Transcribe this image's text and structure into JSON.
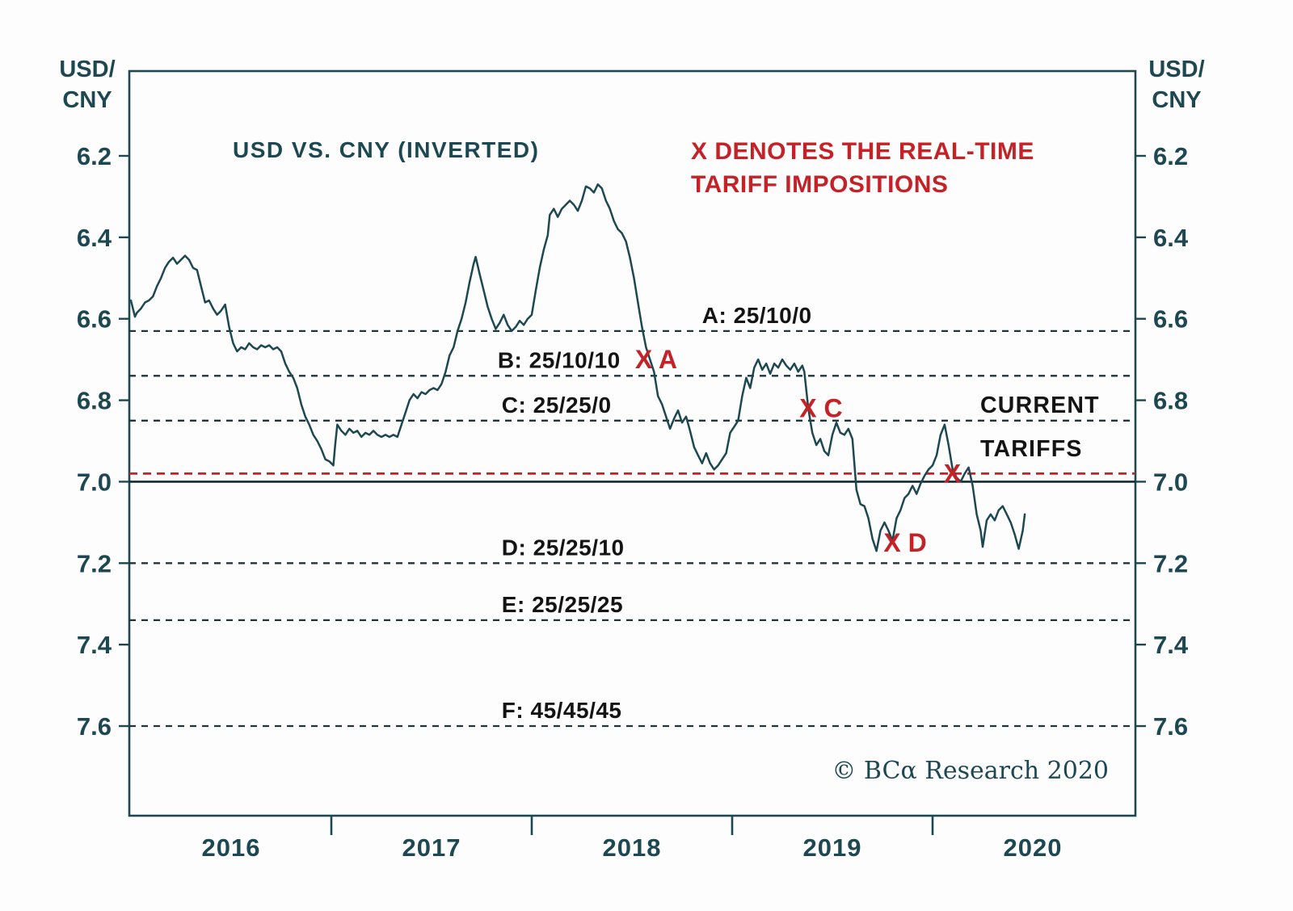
{
  "chart_data": {
    "type": "line",
    "title": "USD VS. CNY (INVERTED)",
    "y_axis_unit": [
      "USD/",
      "CNY"
    ],
    "annotation_red": [
      "X DENOTES THE REAL-TIME",
      "TARIFF IMPOSITIONS"
    ],
    "current_tariffs_label": [
      "CURRENT",
      "TARIFFS"
    ],
    "copyright": "© BCα Research 2020",
    "y_inverted": true,
    "x_year_labels": [
      "2016",
      "2017",
      "2018",
      "2019",
      "2020"
    ],
    "x_tick_years": [
      2017,
      2018,
      2019,
      2020
    ],
    "y_ticks": [
      6.2,
      6.4,
      6.6,
      6.8,
      7.0,
      7.2,
      7.4,
      7.6
    ],
    "x_range": [
      2016.0,
      2021.0
    ],
    "legend_position": "none",
    "grid": "off",
    "reference_lines": [
      {
        "id": "A",
        "label": "A: 25/10/0",
        "value": 6.63,
        "style": "dashed-dark",
        "label_year": 2018.85
      },
      {
        "id": "B",
        "label": "B: 25/10/10",
        "value": 6.74,
        "style": "dashed-dark",
        "label_year": 2017.83
      },
      {
        "id": "C",
        "label": "C: 25/25/0",
        "value": 6.85,
        "style": "dashed-dark",
        "label_year": 2017.85
      },
      {
        "id": "current-tariffs",
        "label": "",
        "value": 6.98,
        "style": "dashed-red"
      },
      {
        "id": "seven-level",
        "label": "",
        "value": 7.0,
        "style": "solid-dark"
      },
      {
        "id": "D",
        "label": "D: 25/25/10",
        "value": 7.2,
        "style": "dashed-dark",
        "label_year": 2017.85
      },
      {
        "id": "E",
        "label": "E: 25/25/25",
        "value": 7.34,
        "style": "dashed-dark",
        "label_year": 2017.85
      },
      {
        "id": "F",
        "label": "F: 45/45/45",
        "value": 7.6,
        "style": "dashed-dark",
        "label_year": 2017.85
      }
    ],
    "markers": [
      {
        "label": "X A",
        "year": 2018.56,
        "value": 6.7
      },
      {
        "label": "X C",
        "year": 2019.38,
        "value": 6.82
      },
      {
        "label": "X D",
        "year": 2019.8,
        "value": 7.15
      },
      {
        "label": "X",
        "year": 2020.1,
        "value": 6.98
      }
    ],
    "series": [
      {
        "name": "USD/CNY",
        "points": [
          [
            2016.0,
            6.555
          ],
          [
            2016.01,
            6.575
          ],
          [
            2016.02,
            6.595
          ],
          [
            2016.03,
            6.585
          ],
          [
            2016.05,
            6.575
          ],
          [
            2016.07,
            6.56
          ],
          [
            2016.09,
            6.555
          ],
          [
            2016.11,
            6.545
          ],
          [
            2016.13,
            6.52
          ],
          [
            2016.15,
            6.5
          ],
          [
            2016.17,
            6.475
          ],
          [
            2016.19,
            6.46
          ],
          [
            2016.21,
            6.45
          ],
          [
            2016.23,
            6.465
          ],
          [
            2016.25,
            6.455
          ],
          [
            2016.27,
            6.445
          ],
          [
            2016.29,
            6.455
          ],
          [
            2016.31,
            6.475
          ],
          [
            2016.33,
            6.48
          ],
          [
            2016.35,
            6.52
          ],
          [
            2016.37,
            6.56
          ],
          [
            2016.39,
            6.555
          ],
          [
            2016.41,
            6.575
          ],
          [
            2016.43,
            6.59
          ],
          [
            2016.45,
            6.58
          ],
          [
            2016.47,
            6.565
          ],
          [
            2016.49,
            6.62
          ],
          [
            2016.51,
            6.66
          ],
          [
            2016.53,
            6.68
          ],
          [
            2016.55,
            6.67
          ],
          [
            2016.57,
            6.675
          ],
          [
            2016.59,
            6.66
          ],
          [
            2016.61,
            6.67
          ],
          [
            2016.63,
            6.675
          ],
          [
            2016.65,
            6.665
          ],
          [
            2016.67,
            6.67
          ],
          [
            2016.69,
            6.665
          ],
          [
            2016.71,
            6.675
          ],
          [
            2016.73,
            6.67
          ],
          [
            2016.75,
            6.68
          ],
          [
            2016.77,
            6.71
          ],
          [
            2016.79,
            6.73
          ],
          [
            2016.81,
            6.745
          ],
          [
            2016.83,
            6.77
          ],
          [
            2016.85,
            6.81
          ],
          [
            2016.87,
            6.84
          ],
          [
            2016.89,
            6.86
          ],
          [
            2016.91,
            6.885
          ],
          [
            2016.93,
            6.9
          ],
          [
            2016.95,
            6.92
          ],
          [
            2016.97,
            6.945
          ],
          [
            2016.99,
            6.95
          ],
          [
            2017.01,
            6.96
          ],
          [
            2017.02,
            6.905
          ],
          [
            2017.03,
            6.86
          ],
          [
            2017.05,
            6.875
          ],
          [
            2017.07,
            6.885
          ],
          [
            2017.09,
            6.87
          ],
          [
            2017.11,
            6.88
          ],
          [
            2017.13,
            6.875
          ],
          [
            2017.15,
            6.89
          ],
          [
            2017.17,
            6.88
          ],
          [
            2017.19,
            6.885
          ],
          [
            2017.21,
            6.875
          ],
          [
            2017.23,
            6.885
          ],
          [
            2017.25,
            6.89
          ],
          [
            2017.27,
            6.885
          ],
          [
            2017.29,
            6.89
          ],
          [
            2017.31,
            6.885
          ],
          [
            2017.33,
            6.89
          ],
          [
            2017.35,
            6.86
          ],
          [
            2017.37,
            6.83
          ],
          [
            2017.39,
            6.8
          ],
          [
            2017.41,
            6.785
          ],
          [
            2017.43,
            6.795
          ],
          [
            2017.45,
            6.78
          ],
          [
            2017.47,
            6.785
          ],
          [
            2017.49,
            6.775
          ],
          [
            2017.51,
            6.77
          ],
          [
            2017.53,
            6.775
          ],
          [
            2017.55,
            6.76
          ],
          [
            2017.57,
            6.73
          ],
          [
            2017.59,
            6.69
          ],
          [
            2017.61,
            6.67
          ],
          [
            2017.63,
            6.63
          ],
          [
            2017.65,
            6.6
          ],
          [
            2017.67,
            6.56
          ],
          [
            2017.69,
            6.51
          ],
          [
            2017.71,
            6.465
          ],
          [
            2017.72,
            6.448
          ],
          [
            2017.74,
            6.49
          ],
          [
            2017.76,
            6.53
          ],
          [
            2017.78,
            6.57
          ],
          [
            2017.8,
            6.6
          ],
          [
            2017.82,
            6.625
          ],
          [
            2017.84,
            6.61
          ],
          [
            2017.86,
            6.59
          ],
          [
            2017.88,
            6.615
          ],
          [
            2017.9,
            6.63
          ],
          [
            2017.92,
            6.62
          ],
          [
            2017.94,
            6.605
          ],
          [
            2017.96,
            6.615
          ],
          [
            2017.98,
            6.6
          ],
          [
            2018.0,
            6.59
          ],
          [
            2018.02,
            6.53
          ],
          [
            2018.04,
            6.475
          ],
          [
            2018.06,
            6.43
          ],
          [
            2018.08,
            6.395
          ],
          [
            2018.09,
            6.345
          ],
          [
            2018.11,
            6.33
          ],
          [
            2018.13,
            6.35
          ],
          [
            2018.15,
            6.33
          ],
          [
            2018.17,
            6.32
          ],
          [
            2018.19,
            6.31
          ],
          [
            2018.21,
            6.32
          ],
          [
            2018.23,
            6.335
          ],
          [
            2018.25,
            6.31
          ],
          [
            2018.27,
            6.275
          ],
          [
            2018.29,
            6.28
          ],
          [
            2018.31,
            6.29
          ],
          [
            2018.33,
            6.27
          ],
          [
            2018.35,
            6.28
          ],
          [
            2018.37,
            6.31
          ],
          [
            2018.39,
            6.33
          ],
          [
            2018.41,
            6.36
          ],
          [
            2018.43,
            6.38
          ],
          [
            2018.45,
            6.39
          ],
          [
            2018.47,
            6.41
          ],
          [
            2018.49,
            6.45
          ],
          [
            2018.51,
            6.5
          ],
          [
            2018.53,
            6.56
          ],
          [
            2018.55,
            6.62
          ],
          [
            2018.57,
            6.67
          ],
          [
            2018.59,
            6.7
          ],
          [
            2018.61,
            6.73
          ],
          [
            2018.63,
            6.79
          ],
          [
            2018.65,
            6.81
          ],
          [
            2018.67,
            6.84
          ],
          [
            2018.69,
            6.87
          ],
          [
            2018.71,
            6.845
          ],
          [
            2018.73,
            6.825
          ],
          [
            2018.75,
            6.855
          ],
          [
            2018.77,
            6.84
          ],
          [
            2018.79,
            6.875
          ],
          [
            2018.81,
            6.915
          ],
          [
            2018.83,
            6.935
          ],
          [
            2018.85,
            6.955
          ],
          [
            2018.87,
            6.93
          ],
          [
            2018.89,
            6.955
          ],
          [
            2018.91,
            6.97
          ],
          [
            2018.93,
            6.96
          ],
          [
            2018.95,
            6.945
          ],
          [
            2018.97,
            6.93
          ],
          [
            2018.99,
            6.88
          ],
          [
            2019.01,
            6.865
          ],
          [
            2019.03,
            6.85
          ],
          [
            2019.05,
            6.79
          ],
          [
            2019.07,
            6.745
          ],
          [
            2019.09,
            6.77
          ],
          [
            2019.11,
            6.72
          ],
          [
            2019.13,
            6.7
          ],
          [
            2019.15,
            6.725
          ],
          [
            2019.17,
            6.71
          ],
          [
            2019.19,
            6.735
          ],
          [
            2019.21,
            6.71
          ],
          [
            2019.23,
            6.72
          ],
          [
            2019.25,
            6.7
          ],
          [
            2019.27,
            6.715
          ],
          [
            2019.29,
            6.725
          ],
          [
            2019.31,
            6.71
          ],
          [
            2019.33,
            6.73
          ],
          [
            2019.35,
            6.715
          ],
          [
            2019.36,
            6.73
          ],
          [
            2019.38,
            6.82
          ],
          [
            2019.4,
            6.88
          ],
          [
            2019.42,
            6.91
          ],
          [
            2019.44,
            6.895
          ],
          [
            2019.46,
            6.925
          ],
          [
            2019.48,
            6.935
          ],
          [
            2019.5,
            6.885
          ],
          [
            2019.52,
            6.855
          ],
          [
            2019.54,
            6.88
          ],
          [
            2019.56,
            6.885
          ],
          [
            2019.58,
            6.87
          ],
          [
            2019.6,
            6.895
          ],
          [
            2019.62,
            7.02
          ],
          [
            2019.64,
            7.055
          ],
          [
            2019.66,
            7.06
          ],
          [
            2019.68,
            7.09
          ],
          [
            2019.7,
            7.14
          ],
          [
            2019.72,
            7.17
          ],
          [
            2019.74,
            7.12
          ],
          [
            2019.76,
            7.1
          ],
          [
            2019.78,
            7.12
          ],
          [
            2019.8,
            7.145
          ],
          [
            2019.82,
            7.09
          ],
          [
            2019.84,
            7.07
          ],
          [
            2019.86,
            7.04
          ],
          [
            2019.88,
            7.03
          ],
          [
            2019.9,
            7.01
          ],
          [
            2019.92,
            7.03
          ],
          [
            2019.94,
            7.005
          ],
          [
            2019.96,
            6.985
          ],
          [
            2019.98,
            6.97
          ],
          [
            2020.0,
            6.96
          ],
          [
            2020.02,
            6.935
          ],
          [
            2020.04,
            6.885
          ],
          [
            2020.06,
            6.86
          ],
          [
            2020.08,
            6.91
          ],
          [
            2020.1,
            6.97
          ],
          [
            2020.12,
            6.99
          ],
          [
            2020.14,
            7.0
          ],
          [
            2020.16,
            6.98
          ],
          [
            2020.18,
            6.965
          ],
          [
            2020.2,
            7.01
          ],
          [
            2020.22,
            7.08
          ],
          [
            2020.24,
            7.12
          ],
          [
            2020.25,
            7.16
          ],
          [
            2020.27,
            7.095
          ],
          [
            2020.29,
            7.08
          ],
          [
            2020.31,
            7.095
          ],
          [
            2020.33,
            7.07
          ],
          [
            2020.35,
            7.06
          ],
          [
            2020.37,
            7.08
          ],
          [
            2020.39,
            7.1
          ],
          [
            2020.41,
            7.13
          ],
          [
            2020.43,
            7.165
          ],
          [
            2020.45,
            7.12
          ],
          [
            2020.46,
            7.08
          ]
        ]
      }
    ],
    "colors": {
      "line": "#1d4852",
      "frame": "#1d4852",
      "dark_text": "#1d4852",
      "black_text": "#141414",
      "dashed_line": "#20353b",
      "solid_line": "#122b33",
      "red": "#c52127"
    }
  }
}
